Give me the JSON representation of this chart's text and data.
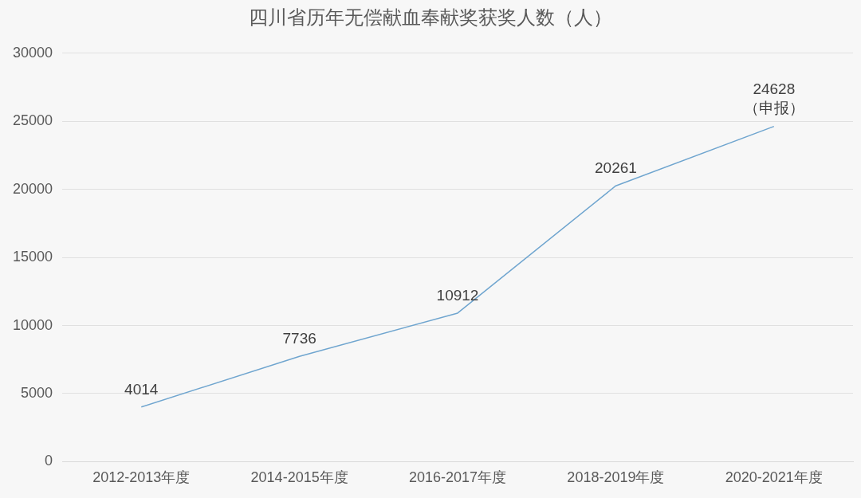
{
  "chart_data": {
    "type": "line",
    "title": "四川省历年无偿献血奉献奖获奖人数（人）",
    "categories": [
      "2012-2013年度",
      "2014-2015年度",
      "2016-2017年度",
      "2018-2019年度",
      "2020-2021年度"
    ],
    "series": [
      {
        "color": "#6fa5cf",
        "values": [
          4014,
          7736,
          10912,
          20261,
          24628
        ]
      }
    ],
    "ylim": [
      0,
      30000
    ],
    "yticks": [
      0,
      5000,
      10000,
      15000,
      20000,
      25000,
      30000
    ],
    "grid": "y",
    "legend": false,
    "marker": "none",
    "line_style": "solid",
    "data_labels": true,
    "annotations": [
      {
        "text": "（申报）",
        "x": "2020-2021年度",
        "y": 24628
      }
    ]
  }
}
